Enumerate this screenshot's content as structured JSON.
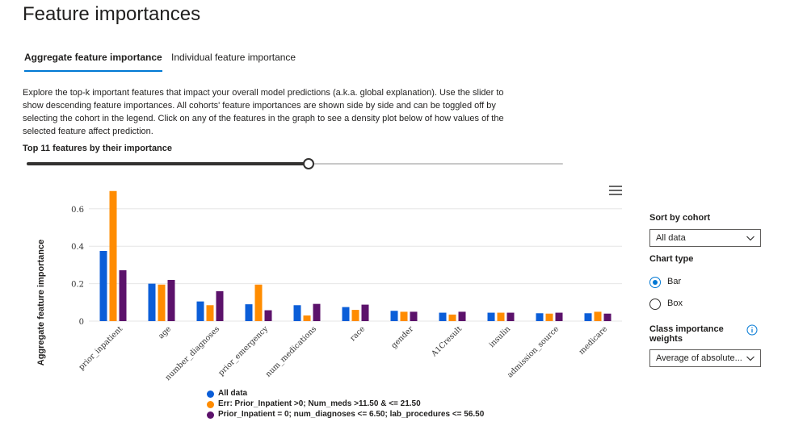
{
  "page": {
    "title": "Feature importances"
  },
  "tabs": [
    {
      "label": "Aggregate feature importance",
      "active": true
    },
    {
      "label": "Individual feature importance",
      "active": false
    }
  ],
  "description": "Explore the top-k important features that impact your overall model predictions (a.k.a. global explanation). Use the slider to show descending feature importances. All cohorts' feature importances are shown side by side and can be toggled off by selecting the cohort in the legend. Click on any of the features in the graph to see a density plot below of how values of the selected feature affect prediction.",
  "slider": {
    "label": "Top 11 features by their importance",
    "value_fraction": 0.526
  },
  "chart_menu_icon": "hamburger-menu-icon",
  "sidebar": {
    "sort_label": "Sort by cohort",
    "sort_value": "All data",
    "chart_type_label": "Chart type",
    "chart_types": [
      {
        "label": "Bar",
        "checked": true
      },
      {
        "label": "Box",
        "checked": false
      }
    ],
    "class_importance_label_line1": "Class importance",
    "class_importance_label_line2": "weights",
    "class_importance_value": "Average of absolute...",
    "info_icon": "info-icon",
    "dropdown_icon": "chevron-down-icon"
  },
  "colors": {
    "accent": "#0078d4"
  },
  "chart_data": {
    "type": "bar",
    "ylabel": "Aggregate feature importance",
    "xlabel": "",
    "ylim": [
      0,
      0.72
    ],
    "yticks": [
      0,
      0.2,
      0.4,
      0.6
    ],
    "ytick_labels": [
      "0",
      "0.2",
      "0.4",
      "0.6"
    ],
    "grid": true,
    "legend_position": "bottom",
    "categories": [
      "prior_inpatient",
      "age",
      "number_diagnoses",
      "prior_emergency",
      "num_medications",
      "race",
      "gender",
      "A1Cresult",
      "insulin",
      "admission_source",
      "medicare"
    ],
    "series": [
      {
        "name": "All data",
        "color": "#0b5ed8",
        "values": [
          0.375,
          0.2,
          0.105,
          0.09,
          0.085,
          0.075,
          0.055,
          0.045,
          0.045,
          0.042,
          0.042
        ]
      },
      {
        "name": "Err: Prior_Inpatient >0; Num_meds >11.50 & <= 21.50",
        "color": "#ff8c00",
        "values": [
          0.695,
          0.195,
          0.085,
          0.195,
          0.03,
          0.06,
          0.05,
          0.035,
          0.045,
          0.04,
          0.05
        ]
      },
      {
        "name": "Prior_Inpatient = 0; num_diagnoses <= 6.50; lab_procedures <= 56.50",
        "color": "#5c126b",
        "values": [
          0.272,
          0.22,
          0.16,
          0.058,
          0.092,
          0.088,
          0.05,
          0.05,
          0.045,
          0.045,
          0.04
        ]
      }
    ]
  }
}
